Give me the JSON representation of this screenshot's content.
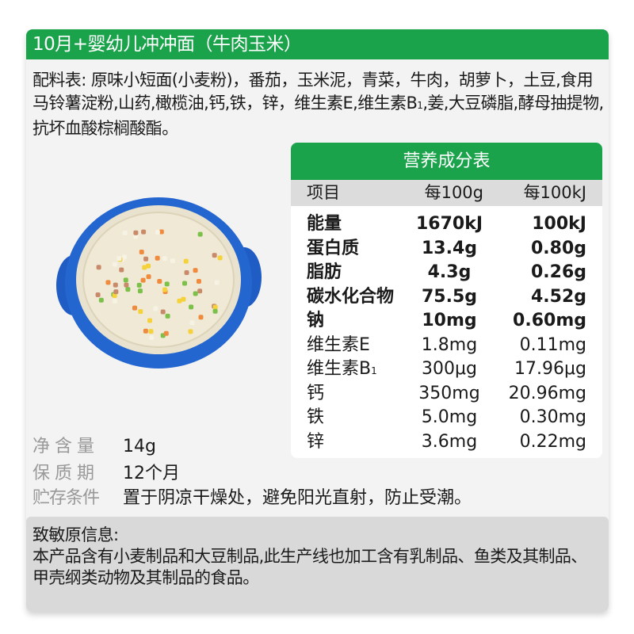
{
  "title": "10月+婴幼儿冲冲面（牛肉玉米）",
  "ingredients": {
    "text_before_sub": "配料表: 原味小短面(小麦粉)，番茄，玉米泥，青菜，牛肉，胡萝卜，土豆,食用马铃薯淀粉,山药,橄榄油,钙,铁，锌，维生素E,维生素B",
    "subscript": "1",
    "text_after_sub": ",姜,大豆磷脂,酵母抽提物,抗坏血酸棕榈酸酯。"
  },
  "nutrition": {
    "title": "营养成分表",
    "columns": [
      "项目",
      "每100g",
      "每100kJ"
    ],
    "rows": [
      {
        "name": "能量",
        "per100g": "1670kJ",
        "per100kj": "100kJ"
      },
      {
        "name": "蛋白质",
        "per100g": "13.4g",
        "per100kj": "0.80g"
      },
      {
        "name": "脂肪",
        "per100g": "4.3g",
        "per100kj": "0.26g"
      },
      {
        "name": "碳水化合物",
        "per100g": "75.5g",
        "per100kj": "4.52g"
      },
      {
        "name": "钠",
        "per100g": "10mg",
        "per100kj": "0.60mg"
      },
      {
        "name": "维生素E",
        "per100g": "1.8mg",
        "per100kj": "0.11mg"
      },
      {
        "name": "维生素B",
        "name_sub": "1",
        "per100g": "300μg",
        "per100kj": "17.96μg"
      },
      {
        "name": "钙",
        "per100g": "350mg",
        "per100kj": "20.96mg"
      },
      {
        "name": "铁",
        "per100g": "5.0mg",
        "per100kj": "0.30mg"
      },
      {
        "name": "锌",
        "per100g": "3.6mg",
        "per100kj": "0.22mg"
      }
    ]
  },
  "info": {
    "net_weight_label": "净含量",
    "net_weight": "14g",
    "shelf_life_label": "保质期",
    "shelf_life": "12个月",
    "storage_label": "贮存条件",
    "storage": "置于阴凉干燥处，避免阳光直射，防止受潮。"
  },
  "allergen": {
    "title": "致敏原信息:",
    "text": "本产品含有小麦制品和大豆制品,此生产线也加工含有乳制品、鱼类及其制品、甲壳纲类动物及其制品的食品。"
  },
  "colors": {
    "brand_green": "#1ba34c",
    "bowl_blue": "#2160c8"
  }
}
